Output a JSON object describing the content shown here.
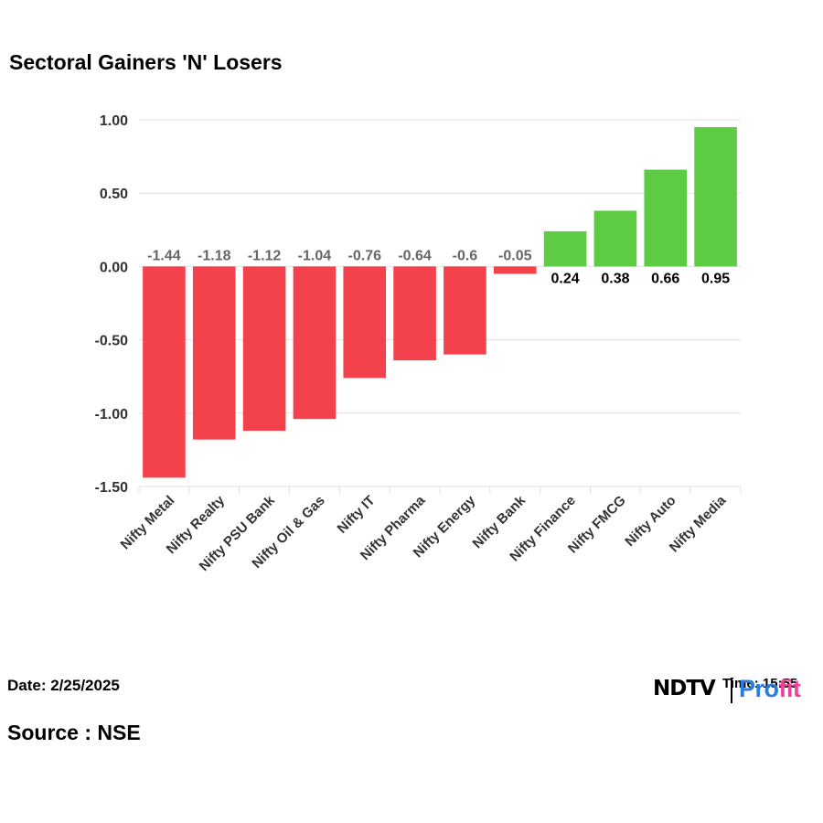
{
  "title": "Sectoral Gainers 'N' Losers",
  "date_text": "Date: 2/25/2025",
  "source_text": "Source : NSE",
  "logo": {
    "brand": "NDTV",
    "time_text": "Time: 15:55",
    "profit_a": "Pro",
    "profit_b": "fit"
  },
  "colors": {
    "gain": "#5ecb45",
    "loss": "#f4424c",
    "grid": "#e0e0e0",
    "axis_text": "#333333",
    "loss_label": "#666666",
    "gain_label": "#000000"
  },
  "chart_data": {
    "type": "bar",
    "title": "Sectoral Gainers 'N' Losers",
    "xlabel": "",
    "ylabel": "",
    "categories": [
      "Nifty Metal",
      "Nifty Realty",
      "Nifty PSU Bank",
      "Nifty Oil & Gas",
      "Nifty IT",
      "Nifty Pharma",
      "Nifty Energy",
      "Nifty Bank",
      "Nifty Finance",
      "Nifty FMCG",
      "Nifty Auto",
      "Nifty Media"
    ],
    "values": [
      -1.44,
      -1.18,
      -1.12,
      -1.04,
      -0.76,
      -0.64,
      -0.6,
      -0.05,
      0.24,
      0.38,
      0.66,
      0.95
    ],
    "value_labels": [
      "-1.44",
      "-1.18",
      "-1.12",
      "-1.04",
      "-0.76",
      "-0.64",
      "-0.6",
      "-0.05",
      "0.24",
      "0.38",
      "0.66",
      "0.95"
    ],
    "ylim": [
      -1.5,
      1.0
    ],
    "yticks": [
      1.0,
      0.5,
      0.0,
      -0.5,
      -1.0,
      -1.5
    ],
    "ytick_labels": [
      "1.00",
      "0.50",
      "0.00",
      "-0.50",
      "-1.00",
      "-1.50"
    ],
    "grid": true,
    "legend": "none"
  }
}
